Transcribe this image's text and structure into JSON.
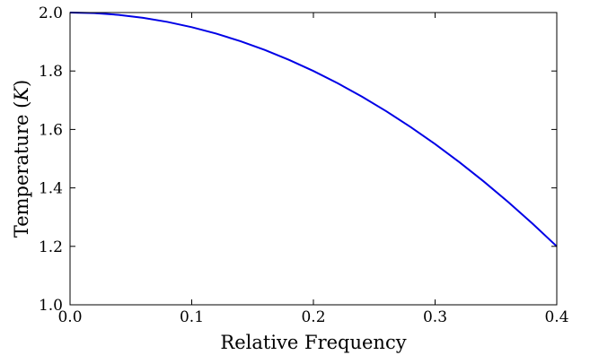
{
  "chart_data": {
    "type": "line",
    "title": "",
    "xlabel": "Relative Frequency",
    "ylabel_prefix": "Temperature (",
    "ylabel_var": "K",
    "ylabel_suffix": ")",
    "xlim": [
      0.0,
      0.4
    ],
    "ylim": [
      1.0,
      2.0
    ],
    "xticks": [
      0.0,
      0.1,
      0.2,
      0.3,
      0.4
    ],
    "xtick_labels": [
      "0.0",
      "0.1",
      "0.2",
      "0.3",
      "0.4"
    ],
    "yticks": [
      1.0,
      1.2,
      1.4,
      1.6,
      1.8,
      2.0
    ],
    "ytick_labels": [
      "1.0",
      "1.2",
      "1.4",
      "1.6",
      "1.8",
      "2.0"
    ],
    "grid": false,
    "line_color": "#0000e6",
    "series": [
      {
        "x": [
          0.0,
          0.02,
          0.04,
          0.06,
          0.08,
          0.1,
          0.12,
          0.14,
          0.16,
          0.18,
          0.2,
          0.22,
          0.24,
          0.26,
          0.28,
          0.3,
          0.32,
          0.34,
          0.36,
          0.38,
          0.4
        ],
        "y": [
          2.0,
          1.998,
          1.992,
          1.982,
          1.968,
          1.95,
          1.928,
          1.902,
          1.872,
          1.838,
          1.8,
          1.758,
          1.712,
          1.662,
          1.608,
          1.55,
          1.488,
          1.422,
          1.352,
          1.278,
          1.2
        ]
      }
    ]
  }
}
